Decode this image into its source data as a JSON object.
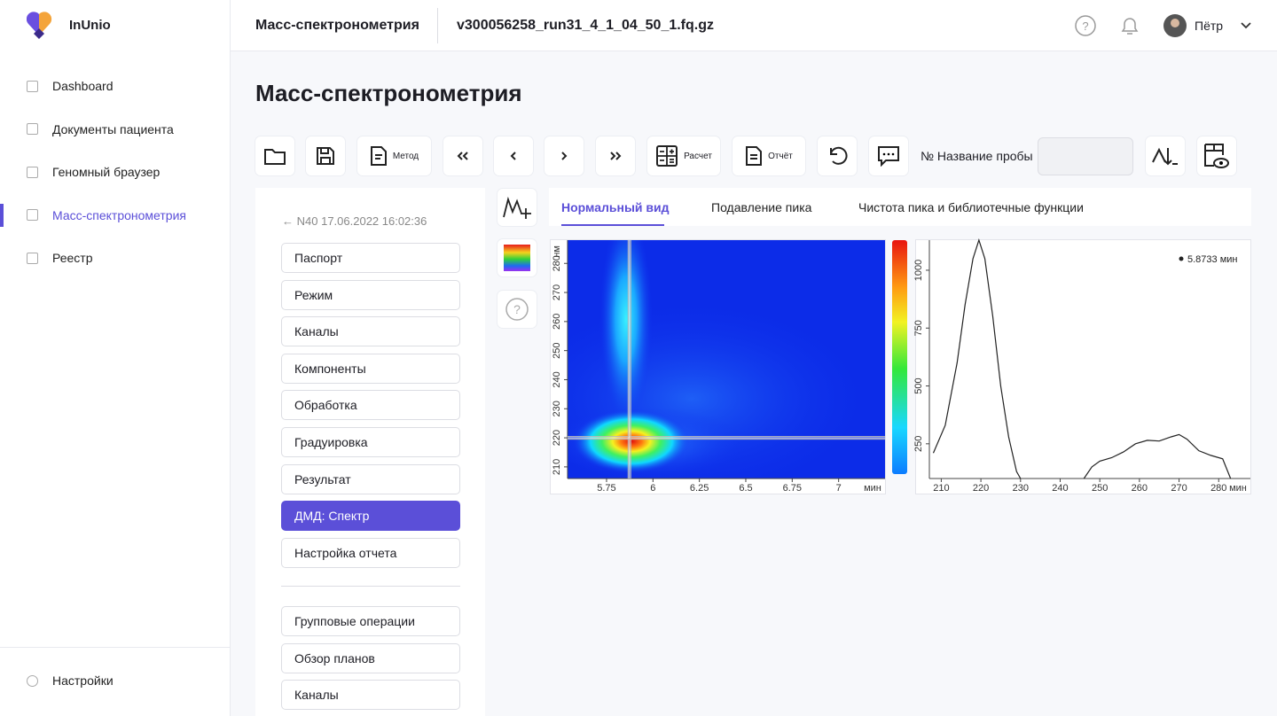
{
  "sidebar": {
    "brand": "InUnio",
    "nav": [
      "Dashboard",
      "Документы пациента",
      "Геномный браузер",
      "Масс-спектронометрия",
      "Реестр"
    ],
    "settings": "Настройки"
  },
  "header": {
    "section": "Масс-спектронометрия",
    "file": "v300056258_run31_4_1_04_50_1.fq.gz",
    "user": "Пётр"
  },
  "page_title": "Масс-спектронометрия",
  "toolbar": {
    "method": "Метод",
    "calc": "Расчет",
    "report": "Отчёт",
    "sample_label": "№ Название пробы"
  },
  "panel": {
    "record": "N40 17.06.2022 16:02:36",
    "items": [
      "Паспорт",
      "Режим",
      "Каналы",
      "Компоненты",
      "Обработка",
      "Градуировка",
      "Результат",
      "ДМД: Спектр",
      "Настройка отчета"
    ],
    "group_items": [
      "Групповые операции",
      "Обзор планов",
      "Каналы"
    ]
  },
  "tabs": [
    "Нормальный вид",
    "Подавление пика",
    "Чистота пика и библиотечные функции"
  ],
  "chart_data": [
    {
      "type": "heatmap",
      "xlim": [
        5.54,
        7.25
      ],
      "xticks": [
        5.75,
        6,
        6.25,
        6.5,
        6.75,
        7
      ],
      "xlabel": "мин",
      "ylim": [
        206,
        288
      ],
      "yticks": [
        210,
        220,
        230,
        240,
        250,
        260,
        270,
        280
      ],
      "ylabel": "нм",
      "cursor": {
        "x": 5.8733,
        "y": 220
      }
    },
    {
      "type": "line",
      "x": [
        208,
        211,
        214,
        216,
        218,
        219.5,
        221,
        223,
        225,
        227,
        229,
        230,
        238,
        246,
        248,
        250,
        253,
        256,
        259,
        262,
        265,
        268,
        270,
        272,
        275,
        278,
        281,
        283
      ],
      "series": [
        {
          "name": "5.8733 мин",
          "color": "#222222",
          "values": [
            210,
            330,
            600,
            850,
            1050,
            1130,
            1050,
            800,
            500,
            280,
            130,
            100,
            null,
            100,
            150,
            175,
            190,
            215,
            250,
            265,
            262,
            280,
            290,
            270,
            220,
            200,
            185,
            100
          ]
        }
      ],
      "xlim": [
        207,
        288
      ],
      "xticks": [
        210,
        220,
        230,
        240,
        250,
        260,
        270,
        280
      ],
      "xlabel": "мин",
      "ylim": [
        100,
        1130
      ],
      "yticks": [
        250,
        500,
        750,
        1000
      ]
    }
  ]
}
